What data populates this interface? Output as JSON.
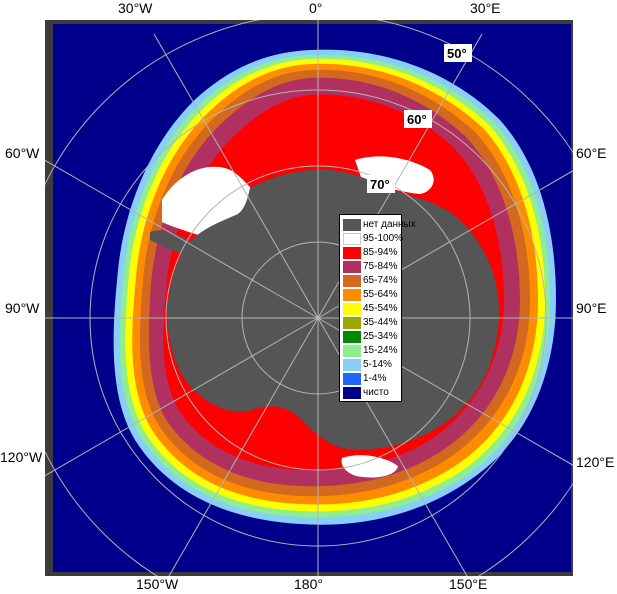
{
  "map": {
    "longitude_labels": {
      "w30": "30°W",
      "zero": "0°",
      "e30": "30°E",
      "w60": "60°W",
      "e60": "60°E",
      "w90": "90°W",
      "e90": "90°E",
      "w120": "120°W",
      "e120": "120°E",
      "w150": "150°W",
      "lon180": "180°",
      "e150": "150°E"
    },
    "latitude_labels": {
      "lat50": "50°",
      "lat60": "60°",
      "lat70": "70°"
    },
    "colors": {
      "open_water": "#00008b",
      "land": "#555555",
      "frame": "#3c3c3c",
      "grid": "#b4b4b4"
    }
  },
  "legend": {
    "items": [
      {
        "label": "нет данных",
        "color": "#555555"
      },
      {
        "label": "95-100%",
        "color": "#ffffff"
      },
      {
        "label": "85-94%",
        "color": "#ff0000"
      },
      {
        "label": "75-84%",
        "color": "#b03060"
      },
      {
        "label": "65-74%",
        "color": "#d2691e"
      },
      {
        "label": "55-64%",
        "color": "#ff8c00"
      },
      {
        "label": "45-54%",
        "color": "#ffff00"
      },
      {
        "label": "35-44%",
        "color": "#9aa800"
      },
      {
        "label": "25-34%",
        "color": "#008c00"
      },
      {
        "label": "15-24%",
        "color": "#90ee90"
      },
      {
        "label": "5-14%",
        "color": "#87cefa"
      },
      {
        "label": "1-4%",
        "color": "#1e64ff"
      },
      {
        "label": "чисто",
        "color": "#00008b"
      }
    ]
  }
}
